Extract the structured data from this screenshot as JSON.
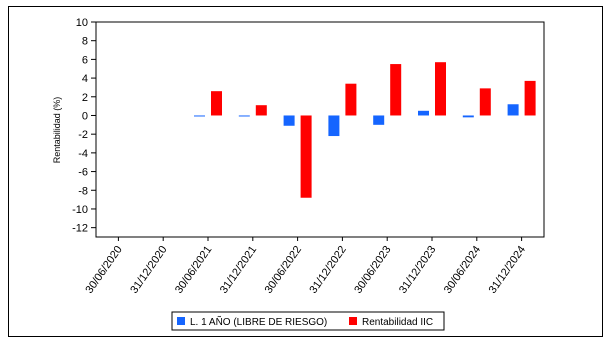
{
  "chart_data": {
    "type": "bar",
    "ylabel": "Rentabilidad (%)",
    "xlabel": "",
    "title": "",
    "ylim": [
      -13,
      10
    ],
    "yticks": [
      10,
      8,
      6,
      4,
      2,
      0,
      -2,
      -4,
      -6,
      -8,
      -10,
      -12
    ],
    "grid": false,
    "legend_position": "bottom-center",
    "categories": [
      "30/06/2020",
      "31/12/2020",
      "30/06/2021",
      "31/12/2021",
      "30/06/2022",
      "31/12/2022",
      "30/06/2023",
      "31/12/2023",
      "30/06/2024",
      "31/12/2024"
    ],
    "series": [
      {
        "name": "L. 1 AÑO (LIBRE DE RIESGO)",
        "color": "#1565ff",
        "values": [
          null,
          null,
          -0.1,
          -0.05,
          -1.1,
          -2.2,
          -1.0,
          0.5,
          -0.2,
          1.2
        ]
      },
      {
        "name": "Rentabilidad IIC",
        "color": "#ff0000",
        "values": [
          null,
          null,
          2.6,
          1.1,
          -8.8,
          3.4,
          5.5,
          5.7,
          2.9,
          3.7
        ]
      }
    ]
  }
}
